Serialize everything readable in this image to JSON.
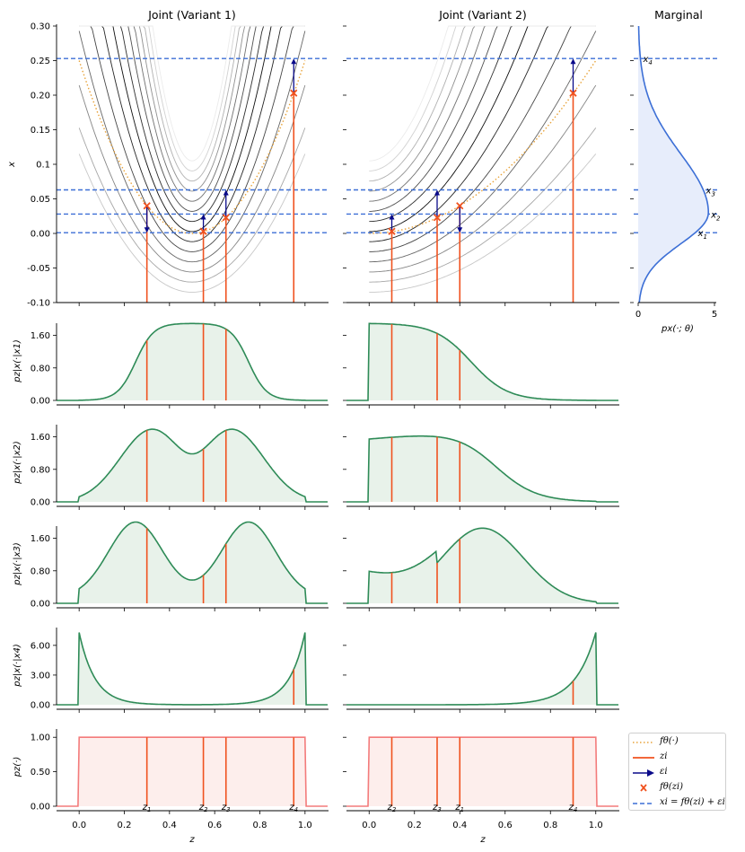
{
  "titles": {
    "left": "Joint (Variant 1)",
    "right": "Joint (Variant 2)",
    "marginal": "Marginal"
  },
  "legend": {
    "f_theta": "fθ(·)",
    "z_i": "zi",
    "eps_i": "εi",
    "f_theta_zi": "fθ(zi)",
    "x_i": "xi = fθ(zi) + εi"
  },
  "colors": {
    "f_theta": "#e8a33a",
    "z_line": "#f0521f",
    "arrow": "#0a0a8a",
    "cross": "#f0521f",
    "x_level": "#3c6fd6",
    "density_line": "#2e8b57",
    "density_fill": "#e8f2ea",
    "prior_line": "#f37b7b",
    "prior_fill": "#fdeeec",
    "marginal_line": "#3c6fd6",
    "marginal_fill": "#e7edfb"
  },
  "chart_data": [
    {
      "type": "line",
      "id": "joint_variant_1",
      "title": "Joint (Variant 1)",
      "ylabel": "x",
      "ylim": [
        -0.1,
        0.3
      ],
      "yticks": [
        "-0.10",
        "-0.05",
        "0.00",
        "0.05",
        "0.1",
        "0.15",
        "0.20",
        "0.25",
        "0.30"
      ],
      "f_theta": "f(z) = (z - 0.5)^2, z in [0,1]",
      "x_levels": [
        0.001,
        0.028,
        0.063,
        0.253
      ],
      "points": [
        {
          "z": 0.3,
          "f": 0.04,
          "x": 0.001
        },
        {
          "z": 0.55,
          "f": 0.003,
          "x": 0.028
        },
        {
          "z": 0.65,
          "f": 0.023,
          "x": 0.063
        },
        {
          "z": 0.95,
          "f": 0.203,
          "x": 0.253
        }
      ]
    },
    {
      "type": "line",
      "id": "joint_variant_2",
      "title": "Joint (Variant 2)",
      "f_theta": "f(z) = 0.25 z^2, z in [0,1]",
      "x_levels": [
        0.001,
        0.028,
        0.063,
        0.253
      ],
      "points": [
        {
          "z": 0.1,
          "f": 0.003,
          "x": 0.028
        },
        {
          "z": 0.3,
          "f": 0.023,
          "x": 0.063
        },
        {
          "z": 0.4,
          "f": 0.04,
          "x": 0.001
        },
        {
          "z": 0.9,
          "f": 0.203,
          "x": 0.253
        }
      ]
    },
    {
      "type": "area",
      "id": "marginal",
      "title": "Marginal",
      "xlabel": "px(·; θ)",
      "xlim": [
        0,
        5
      ],
      "xticks": [
        "0",
        "5"
      ],
      "peak": {
        "x": 0.03,
        "density": 4.6
      },
      "levels": [
        {
          "label": "x1",
          "x": 0.001
        },
        {
          "label": "x2",
          "x": 0.028
        },
        {
          "label": "x3",
          "x": 0.063
        },
        {
          "label": "x4",
          "x": 0.253
        }
      ]
    },
    {
      "type": "area",
      "id": "conditionals",
      "xlabel": "z",
      "xlim": [
        -0.1,
        1.1
      ],
      "xticks": [
        "0.0",
        "0.2",
        "0.4",
        "0.6",
        "0.8",
        "1.0"
      ],
      "rows": [
        {
          "ylabel": "pz|x(·|x1)",
          "yticks": [
            "0.00",
            "0.80",
            "1.60"
          ],
          "ymax": 1.9,
          "left_marks": [
            0.3,
            0.55,
            0.65
          ],
          "right_marks": [
            0.1,
            0.3,
            0.4
          ]
        },
        {
          "ylabel": "pz|x(·|x2)",
          "yticks": [
            "0.00",
            "0.80",
            "1.60"
          ],
          "ymax": 1.9,
          "left_marks": [
            0.3,
            0.55,
            0.65
          ],
          "right_marks": [
            0.1,
            0.3,
            0.4
          ]
        },
        {
          "ylabel": "pz|x(·|x3)",
          "yticks": [
            "0.00",
            "0.80",
            "1.60"
          ],
          "ymax": 1.9,
          "left_marks": [
            0.3,
            0.55,
            0.65
          ],
          "right_marks": [
            0.1,
            0.3,
            0.4
          ]
        },
        {
          "ylabel": "pz|x(·|x4)",
          "yticks": [
            "0.00",
            "3.00",
            "6.00"
          ],
          "ymax": 7.8,
          "left_marks": [
            0.95
          ],
          "right_marks": [
            0.9
          ]
        },
        {
          "ylabel": "pz(·)",
          "yticks": [
            "0.00",
            "0.50",
            "1.00"
          ],
          "ymax": 1.12,
          "left_marks": [
            0.3,
            0.55,
            0.65,
            0.95
          ],
          "right_marks": [
            0.1,
            0.3,
            0.4,
            0.9
          ],
          "left_labels": [
            "z1",
            "z2",
            "z3",
            "z4"
          ],
          "right_labels": [
            "z2",
            "z3",
            "z1",
            "z4"
          ]
        }
      ]
    }
  ]
}
